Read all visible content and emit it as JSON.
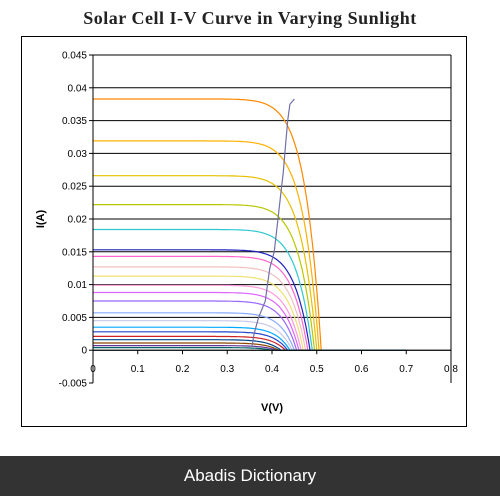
{
  "chart_data": {
    "type": "line",
    "title": "Solar Cell I-V Curve in Varying Sunlight",
    "xlabel": "V(V)",
    "ylabel": "I(A)",
    "xlim": [
      0,
      0.8
    ],
    "ylim": [
      -0.005,
      0.045
    ],
    "xticks": [
      "0",
      "0.1",
      "0.2",
      "0.3",
      "0.4",
      "0.5",
      "0.6",
      "0.7",
      "0.8"
    ],
    "yticks": [
      "0.045",
      "0.04",
      "0.035",
      "0.03",
      "0.025",
      "0.02",
      "0.015",
      "0.01",
      "0.005",
      "0",
      "-0.005"
    ],
    "grid": "horizontal",
    "legend": "none",
    "series": [
      {
        "color": "#ff8800",
        "isc": 0.0383,
        "voc": 0.51
      },
      {
        "color": "#ffb000",
        "isc": 0.0319,
        "voc": 0.505
      },
      {
        "color": "#e6c000",
        "isc": 0.0266,
        "voc": 0.5
      },
      {
        "color": "#b8c800",
        "isc": 0.0222,
        "voc": 0.495
      },
      {
        "color": "#30c8d0",
        "isc": 0.0184,
        "voc": 0.49
      },
      {
        "color": "#2020c0",
        "isc": 0.0153,
        "voc": 0.485
      },
      {
        "color": "#ff66cc",
        "isc": 0.0143,
        "voc": 0.48
      },
      {
        "color": "#f0c0c0",
        "isc": 0.0127,
        "voc": 0.475
      },
      {
        "color": "#f0e070",
        "isc": 0.0113,
        "voc": 0.47
      },
      {
        "color": "#ff99dd",
        "isc": 0.0099,
        "voc": 0.465
      },
      {
        "color": "#dd66ff",
        "isc": 0.0088,
        "voc": 0.46
      },
      {
        "color": "#9966ff",
        "isc": 0.0075,
        "voc": 0.455
      },
      {
        "color": "#88aaff",
        "isc": 0.0057,
        "voc": 0.45
      },
      {
        "color": "#c8c8e8",
        "isc": 0.0045,
        "voc": 0.445
      },
      {
        "color": "#00aaff",
        "isc": 0.0035,
        "voc": 0.44
      },
      {
        "color": "#2244cc",
        "isc": 0.0028,
        "voc": 0.435
      },
      {
        "color": "#cc2222",
        "isc": 0.0021,
        "voc": 0.43
      },
      {
        "color": "#004488",
        "isc": 0.0016,
        "voc": 0.42
      },
      {
        "color": "#884400",
        "isc": 0.0011,
        "voc": 0.415
      },
      {
        "color": "#663399",
        "isc": 0.0007,
        "voc": 0.41
      },
      {
        "color": "#006666",
        "isc": 0.0004,
        "voc": 0.4
      }
    ],
    "mpp_curve": {
      "color": "#7070a8",
      "x": [
        0.355,
        0.36,
        0.37,
        0.385,
        0.39,
        0.395,
        0.405,
        0.41,
        0.415,
        0.42,
        0.425,
        0.43,
        0.435,
        0.44,
        0.45
      ],
      "y": [
        0.0005,
        0.0025,
        0.005,
        0.0075,
        0.01,
        0.0125,
        0.015,
        0.018,
        0.021,
        0.024,
        0.027,
        0.031,
        0.035,
        0.0375,
        0.0383
      ]
    }
  },
  "footer": {
    "text": "Abadis Dictionary",
    "bg_color": "#333333"
  }
}
